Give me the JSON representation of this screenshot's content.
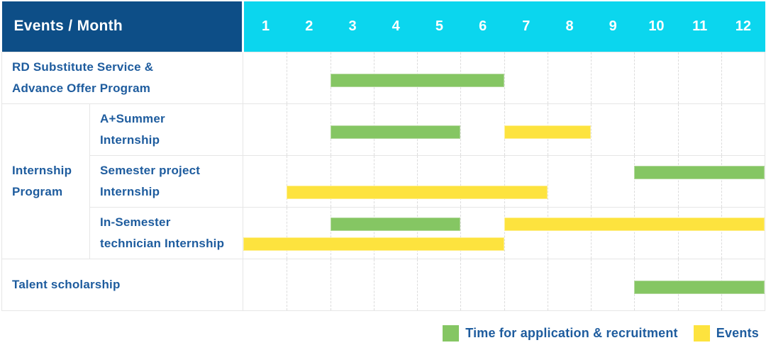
{
  "chart_data": {
    "type": "bar",
    "subtype": "gantt-schedule-table",
    "corner_header": "Events / Month",
    "months": [
      "1",
      "2",
      "3",
      "4",
      "5",
      "6",
      "7",
      "8",
      "9",
      "10",
      "11",
      "12"
    ],
    "month_range": [
      1,
      12
    ],
    "grid": "dashed-vertical-month-lines",
    "series_legend_position": "bottom-right",
    "groups": {
      "internship-program": {
        "label_lines": [
          "Internship",
          "Program"
        ]
      }
    },
    "rows": [
      {
        "id": "rd-substitute-service",
        "group": null,
        "label_lines": [
          "RD Substitute Service &",
          "Advance Offer Program"
        ],
        "bars": [
          {
            "series": "recruitment",
            "start_month": 3,
            "end_month": 6,
            "lane": "single"
          }
        ]
      },
      {
        "id": "a-plus-summer-internship",
        "group": "internship-program",
        "label_lines": [
          "A+Summer",
          "Internship"
        ],
        "bars": [
          {
            "series": "recruitment",
            "start_month": 3,
            "end_month": 5,
            "lane": "single"
          },
          {
            "series": "event",
            "start_month": 7,
            "end_month": 8,
            "lane": "single"
          }
        ]
      },
      {
        "id": "semester-project-internship",
        "group": "internship-program",
        "label_lines": [
          "Semester project",
          "Internship"
        ],
        "bars": [
          {
            "series": "recruitment",
            "start_month": 10,
            "end_month": 12,
            "lane": "top"
          },
          {
            "series": "event",
            "start_month": 2,
            "end_month": 7,
            "lane": "bottom"
          }
        ]
      },
      {
        "id": "in-semester-technician-internship",
        "group": "internship-program",
        "label_lines": [
          "In-Semester",
          "technician Internship"
        ],
        "bars": [
          {
            "series": "recruitment",
            "start_month": 3,
            "end_month": 5,
            "lane": "top"
          },
          {
            "series": "event",
            "start_month": 7,
            "end_month": 12,
            "lane": "top"
          },
          {
            "series": "event",
            "start_month": 1,
            "end_month": 6,
            "lane": "bottom"
          }
        ]
      },
      {
        "id": "talent-scholarship",
        "group": null,
        "label_lines": [
          "Talent scholarship"
        ],
        "bars": [
          {
            "series": "recruitment",
            "start_month": 10,
            "end_month": 12,
            "lane": "single"
          }
        ]
      }
    ]
  },
  "legend": {
    "recruitment_label": "Time for application & recruitment",
    "events_label": "Events"
  },
  "colors": {
    "header_blue": "#0d4e87",
    "month_cyan": "#0bd6ee",
    "bar_green": "#85c663",
    "bar_yellow": "#fde33e",
    "label_blue": "#1e5c9e",
    "grid_line": "#e6e6e6",
    "gridline_dashed": "#dcdcdc"
  }
}
